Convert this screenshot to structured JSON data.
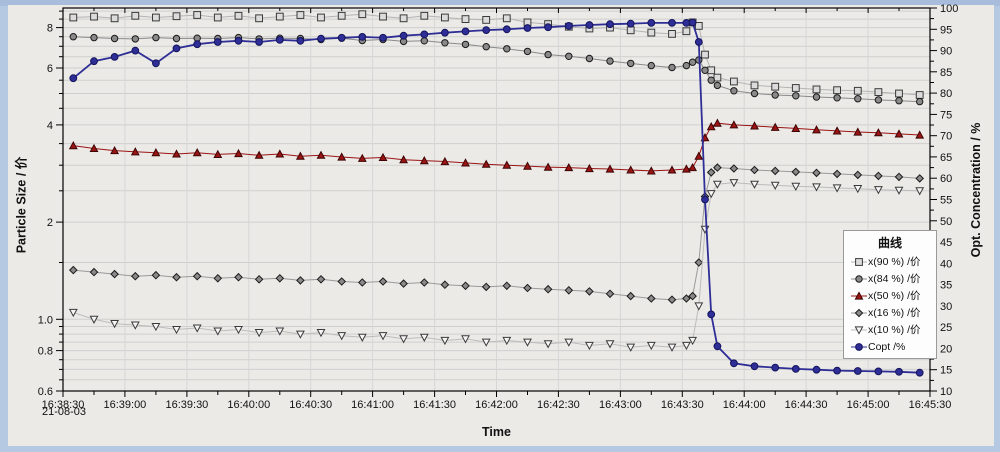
{
  "window": {
    "frame_color": "#b6c9e2",
    "surface_color": "#ebeae7"
  },
  "chart_data": {
    "type": "line",
    "xlabel": "Time",
    "date_label": "21-08-03",
    "ylabel_left": "Particle Size / 价",
    "ylabel_right": "Opt. Concentration / %",
    "x_total_seconds": 420,
    "x_tick_labels": [
      "16:38:30",
      "16:39:00",
      "16:39:30",
      "16:40:00",
      "16:40:30",
      "16:41:00",
      "16:41:30",
      "16:42:00",
      "16:42:30",
      "16:43:00",
      "16:43:30",
      "16:44:00",
      "16:44:30",
      "16:45:00",
      "16:45:30"
    ],
    "left_axis": {
      "scale": "log",
      "min": 0.6,
      "max": 9.2,
      "labeled_ticks": [
        {
          "v": 8,
          "label": "8"
        },
        {
          "v": 6,
          "label": "6"
        },
        {
          "v": 4,
          "label": "4"
        },
        {
          "v": 2,
          "label": "2"
        },
        {
          "v": 1,
          "label": "1.0"
        },
        {
          "v": 0.8,
          "label": "0.8"
        },
        {
          "v": 0.6,
          "label": "0.6"
        }
      ],
      "gridlines": [
        9,
        8.5,
        8,
        7.5,
        7,
        6.5,
        6,
        5.5,
        5,
        4.5,
        4,
        3.5,
        3,
        2.5,
        2,
        1.5,
        1,
        0.95,
        0.9,
        0.85,
        0.8,
        0.75,
        0.7,
        0.65
      ],
      "minor_ticks": [
        9,
        8.5,
        7.5,
        7,
        6.5,
        5.5,
        5,
        4.5,
        3.5,
        3,
        2.5,
        1.5,
        0.95,
        0.9,
        0.85,
        0.75,
        0.7,
        0.65
      ]
    },
    "right_axis": {
      "scale": "linear",
      "min": 10,
      "max": 100,
      "tick_step": 5,
      "minor_step": 2.5
    },
    "time_seconds": [
      5,
      15,
      25,
      35,
      45,
      55,
      65,
      75,
      85,
      95,
      105,
      115,
      125,
      135,
      145,
      155,
      165,
      175,
      185,
      195,
      205,
      215,
      225,
      235,
      245,
      255,
      265,
      275,
      285,
      295,
      302,
      305,
      308,
      311,
      314,
      317,
      325,
      335,
      345,
      355,
      365,
      375,
      385,
      395,
      405,
      415
    ],
    "series": [
      {
        "name": "x(90 %) /价",
        "axis": "left",
        "marker": "square",
        "fill": "#dcdcdc",
        "stroke": "#3a3a3a",
        "line": "#b4b4b4",
        "msize": 3.4,
        "values": [
          8.6,
          8.65,
          8.55,
          8.7,
          8.6,
          8.68,
          8.75,
          8.6,
          8.7,
          8.55,
          8.65,
          8.75,
          8.6,
          8.7,
          8.8,
          8.65,
          8.55,
          8.7,
          8.6,
          8.5,
          8.45,
          8.55,
          8.3,
          8.2,
          8.05,
          7.95,
          8.0,
          7.85,
          7.72,
          7.65,
          7.8,
          8.3,
          8.1,
          6.6,
          5.9,
          5.6,
          5.45,
          5.3,
          5.25,
          5.2,
          5.15,
          5.12,
          5.1,
          5.05,
          5.0,
          4.95
        ]
      },
      {
        "name": "x(84 %) /价",
        "axis": "left",
        "marker": "circle",
        "fill": "#8a8a8a",
        "stroke": "#1a1a1a",
        "line": "#8a8a8a",
        "msize": 3.2,
        "values": [
          7.5,
          7.45,
          7.4,
          7.38,
          7.45,
          7.4,
          7.42,
          7.4,
          7.45,
          7.38,
          7.42,
          7.4,
          7.35,
          7.42,
          7.3,
          7.35,
          7.25,
          7.28,
          7.18,
          7.1,
          6.98,
          6.88,
          6.75,
          6.6,
          6.52,
          6.42,
          6.3,
          6.2,
          6.1,
          6.02,
          6.1,
          6.25,
          6.35,
          5.9,
          5.5,
          5.3,
          5.1,
          5.0,
          4.95,
          4.92,
          4.88,
          4.85,
          4.82,
          4.78,
          4.75,
          4.72
        ]
      },
      {
        "name": "x(50 %) /价",
        "axis": "left",
        "marker": "triangle-up",
        "fill": "#9b1414",
        "stroke": "#3c0505",
        "line": "#9b1414",
        "msize": 3.6,
        "values": [
          3.45,
          3.38,
          3.33,
          3.3,
          3.28,
          3.25,
          3.28,
          3.24,
          3.26,
          3.22,
          3.25,
          3.2,
          3.22,
          3.18,
          3.15,
          3.17,
          3.12,
          3.1,
          3.08,
          3.05,
          3.02,
          3.0,
          2.98,
          2.96,
          2.95,
          2.93,
          2.92,
          2.9,
          2.88,
          2.9,
          2.92,
          2.95,
          3.2,
          3.65,
          3.95,
          4.05,
          4.0,
          3.97,
          3.93,
          3.9,
          3.86,
          3.83,
          3.8,
          3.78,
          3.75,
          3.72
        ]
      },
      {
        "name": "x(16 %) /价",
        "axis": "left",
        "marker": "diamond",
        "fill": "#8a8a8a",
        "stroke": "#1a1a1a",
        "line": "#9a9a9a",
        "msize": 3.6,
        "values": [
          1.42,
          1.4,
          1.38,
          1.36,
          1.37,
          1.35,
          1.36,
          1.34,
          1.35,
          1.33,
          1.34,
          1.32,
          1.33,
          1.31,
          1.3,
          1.31,
          1.29,
          1.3,
          1.28,
          1.27,
          1.26,
          1.27,
          1.25,
          1.24,
          1.23,
          1.22,
          1.2,
          1.18,
          1.16,
          1.15,
          1.16,
          1.18,
          1.5,
          2.4,
          2.85,
          2.95,
          2.93,
          2.9,
          2.88,
          2.86,
          2.84,
          2.82,
          2.8,
          2.78,
          2.76,
          2.73
        ]
      },
      {
        "name": "x(10 %) /价",
        "axis": "left",
        "marker": "triangle-down",
        "fill": "#f6f6f6",
        "stroke": "#3a3a3a",
        "line": "#bcbcbc",
        "msize": 3.6,
        "values": [
          1.05,
          1.0,
          0.97,
          0.96,
          0.95,
          0.93,
          0.94,
          0.92,
          0.93,
          0.91,
          0.92,
          0.9,
          0.91,
          0.89,
          0.88,
          0.89,
          0.87,
          0.88,
          0.86,
          0.87,
          0.85,
          0.86,
          0.85,
          0.84,
          0.85,
          0.83,
          0.84,
          0.82,
          0.83,
          0.82,
          0.83,
          0.86,
          1.1,
          1.9,
          2.45,
          2.62,
          2.65,
          2.62,
          2.6,
          2.58,
          2.57,
          2.55,
          2.54,
          2.52,
          2.51,
          2.5
        ]
      },
      {
        "name": "Copt /%",
        "axis": "right",
        "marker": "circle",
        "fill": "#2e2e96",
        "stroke": "#14145c",
        "line": "#2e2e96",
        "msize": 3.4,
        "values": [
          83.5,
          87.5,
          88.5,
          90.0,
          87.0,
          90.5,
          91.5,
          92.0,
          92.3,
          92.0,
          92.5,
          92.3,
          92.8,
          93.0,
          93.2,
          93.0,
          93.5,
          93.8,
          94.2,
          94.5,
          94.8,
          95.0,
          95.3,
          95.5,
          95.8,
          96.0,
          96.2,
          96.3,
          96.5,
          96.5,
          96.5,
          96.6,
          92.0,
          55.0,
          28.0,
          20.5,
          16.5,
          15.8,
          15.5,
          15.2,
          15.0,
          14.8,
          14.7,
          14.6,
          14.5,
          14.3
        ]
      }
    ],
    "legend": {
      "title": "曲线"
    }
  }
}
